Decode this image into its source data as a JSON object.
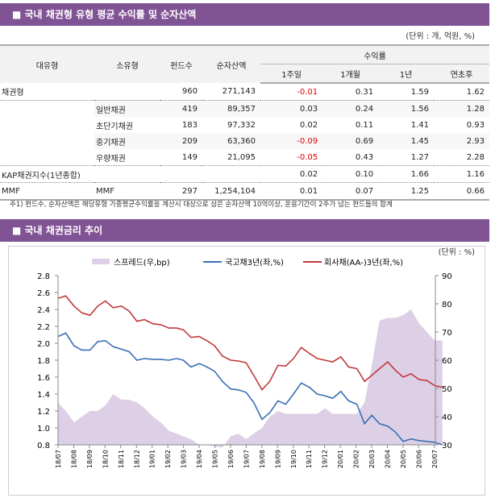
{
  "section1": {
    "title": "■ 국내 채권형 유형 평균 수익률 및 순자산액",
    "unit": "(단위 : 개, 억원, %)"
  },
  "table": {
    "headers": {
      "major": "대유형",
      "minor": "소유형",
      "funds": "펀드수",
      "assets": "순자산액",
      "returns": "수익률",
      "w1": "1주일",
      "m1": "1개월",
      "y1": "1년",
      "ytd": "연초후"
    },
    "rows": [
      {
        "major": "채권형",
        "minor": "",
        "funds": "960",
        "assets": "271,143",
        "w1": "-0.01",
        "m1": "0.31",
        "y1": "1.59",
        "ytd": "1.62"
      },
      {
        "major": "",
        "minor": "일반채권",
        "funds": "419",
        "assets": "89,357",
        "w1": "0.03",
        "m1": "0.24",
        "y1": "1.56",
        "ytd": "1.28"
      },
      {
        "major": "",
        "minor": "초단기채권",
        "funds": "183",
        "assets": "97,332",
        "w1": "0.02",
        "m1": "0.11",
        "y1": "1.41",
        "ytd": "0.93"
      },
      {
        "major": "",
        "minor": "중기채권",
        "funds": "209",
        "assets": "63,360",
        "w1": "-0.09",
        "m1": "0.69",
        "y1": "1.45",
        "ytd": "2.93"
      },
      {
        "major": "",
        "minor": "우량채권",
        "funds": "149",
        "assets": "21,095",
        "w1": "-0.05",
        "m1": "0.43",
        "y1": "1.27",
        "ytd": "2.28"
      },
      {
        "major": "KAP채권지수(1년종합)",
        "minor": "",
        "funds": "",
        "assets": "",
        "w1": "0.02",
        "m1": "0.10",
        "y1": "1.66",
        "ytd": "1.16"
      },
      {
        "major": "MMF",
        "minor": "MMF",
        "funds": "297",
        "assets": "1,254,104",
        "w1": "0.01",
        "m1": "0.07",
        "y1": "1.25",
        "ytd": "0.66"
      }
    ]
  },
  "note": "주1) 펀드수, 순자산액은 해당유형 가중평균수익률을 계산시 대상으로 삼은 순자산액 10억이상, 운용기간이 2주가 넘는 펀드들의 합계",
  "section2": {
    "title": "■ 국내 채권금리 추이",
    "unit": "(단위 : %)"
  },
  "colors": {
    "header": "#805394",
    "negative": "#e00000",
    "spread": "#ddd0e6",
    "gov": "#3a6fb5",
    "corp": "#c0393b"
  },
  "chart_data": {
    "type": "line",
    "legend_placement": "top",
    "grid": false,
    "ylim_left": [
      0.8,
      2.8
    ],
    "yticks_left": [
      "2.8",
      "2.6",
      "2.4",
      "2.2",
      "2.0",
      "1.8",
      "1.6",
      "1.4",
      "1.2",
      "1.0",
      "0.8"
    ],
    "ylim_right": [
      30,
      90
    ],
    "yticks_right": [
      "90",
      "80",
      "70",
      "60",
      "50",
      "40",
      "30"
    ],
    "xticks": [
      "18/07",
      "18/08",
      "18/09",
      "18/10",
      "18/11",
      "18/12",
      "19/01",
      "19/02",
      "19/03",
      "19/04",
      "19/05",
      "19/06",
      "19/07",
      "19/08",
      "19/09",
      "19/10",
      "19/11",
      "19/12",
      "20/01",
      "20/02",
      "20/03",
      "20/04",
      "20/05",
      "20/06",
      "20/07"
    ],
    "x": [
      "2018-07-01",
      "2018-07-16",
      "2018-08-01",
      "2018-08-16",
      "2018-09-01",
      "2018-09-16",
      "2018-10-01",
      "2018-10-16",
      "2018-11-01",
      "2018-11-16",
      "2018-12-01",
      "2018-12-16",
      "2019-01-01",
      "2019-01-16",
      "2019-02-01",
      "2019-02-16",
      "2019-03-01",
      "2019-03-16",
      "2019-04-01",
      "2019-04-16",
      "2019-05-01",
      "2019-05-16",
      "2019-06-01",
      "2019-06-16",
      "2019-07-01",
      "2019-07-16",
      "2019-08-01",
      "2019-08-16",
      "2019-09-01",
      "2019-09-16",
      "2019-10-01",
      "2019-10-16",
      "2019-11-01",
      "2019-11-16",
      "2019-12-01",
      "2019-12-16",
      "2020-01-01",
      "2020-01-16",
      "2020-02-01",
      "2020-02-16",
      "2020-03-01",
      "2020-03-16",
      "2020-04-01",
      "2020-04-16",
      "2020-05-01",
      "2020-05-16",
      "2020-06-01",
      "2020-06-16",
      "2020-07-01",
      "2020-07-16"
    ],
    "series": [
      {
        "name": "스프레드(우,bp)",
        "type": "area",
        "axis": "right",
        "values": [
          45,
          42,
          38,
          40,
          42,
          42,
          44,
          48,
          46,
          46,
          45,
          43,
          40,
          38,
          35,
          34,
          33,
          32,
          30,
          30,
          29.5,
          29,
          33,
          34,
          32,
          34,
          36,
          40,
          42,
          41,
          41,
          41,
          41,
          41,
          43,
          41,
          41,
          41,
          41,
          45,
          58,
          74,
          75,
          75,
          76,
          78,
          73,
          70,
          67,
          67
        ]
      },
      {
        "name": "국고채3년(좌,%)",
        "type": "line",
        "axis": "left",
        "values": [
          2.08,
          2.12,
          1.97,
          1.92,
          1.92,
          2.02,
          2.03,
          1.96,
          1.93,
          1.9,
          1.8,
          1.82,
          1.81,
          1.81,
          1.8,
          1.82,
          1.8,
          1.72,
          1.76,
          1.72,
          1.67,
          1.55,
          1.46,
          1.45,
          1.42,
          1.3,
          1.1,
          1.18,
          1.32,
          1.28,
          1.4,
          1.53,
          1.48,
          1.4,
          1.38,
          1.35,
          1.43,
          1.32,
          1.28,
          1.05,
          1.15,
          1.05,
          1.02,
          0.95,
          0.84,
          0.87,
          0.85,
          0.84,
          0.83,
          0.8
        ]
      },
      {
        "name": "회사채(AA-)3년(좌,%)",
        "type": "line",
        "axis": "left",
        "values": [
          2.53,
          2.56,
          2.44,
          2.36,
          2.33,
          2.44,
          2.5,
          2.42,
          2.44,
          2.38,
          2.26,
          2.28,
          2.23,
          2.22,
          2.18,
          2.18,
          2.16,
          2.07,
          2.08,
          2.03,
          1.97,
          1.85,
          1.8,
          1.79,
          1.77,
          1.62,
          1.45,
          1.55,
          1.74,
          1.73,
          1.82,
          1.95,
          1.88,
          1.82,
          1.8,
          1.78,
          1.84,
          1.72,
          1.7,
          1.55,
          1.62,
          1.7,
          1.78,
          1.68,
          1.6,
          1.64,
          1.57,
          1.56,
          1.5,
          1.48
        ]
      }
    ]
  }
}
